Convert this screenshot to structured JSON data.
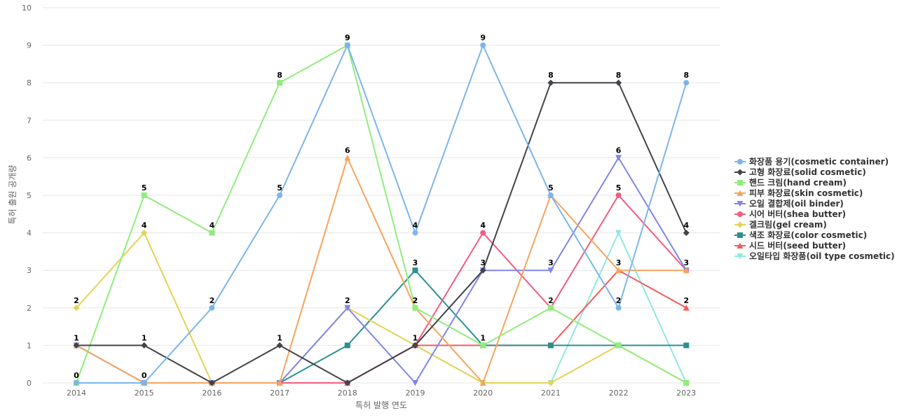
{
  "chart_data": {
    "type": "line",
    "title": "",
    "xlabel": "특허 발행 연도",
    "ylabel": "특허 출원 공개량",
    "ylim": [
      0,
      10
    ],
    "yticks": [
      "0",
      "1",
      "2",
      "3",
      "4",
      "5",
      "6",
      "7",
      "8",
      "9",
      "10"
    ],
    "categories": [
      "2014",
      "2015",
      "2016",
      "2017",
      "2018",
      "2019",
      "2020",
      "2021",
      "2022",
      "2023"
    ],
    "grid": true,
    "legend_position": "right",
    "series": [
      {
        "name": "화장품 용기(cosmetic container)",
        "color": "#7cb5ec",
        "marker": "circle",
        "values": [
          0,
          0,
          2,
          5,
          9,
          4,
          9,
          5,
          2,
          8
        ]
      },
      {
        "name": "고형 화장료(solid cosmetic)",
        "color": "#434348",
        "marker": "diamond",
        "values": [
          1,
          1,
          0,
          1,
          0,
          1,
          3,
          8,
          8,
          4
        ]
      },
      {
        "name": "핸드 크림(hand cream)",
        "color": "#90ed7d",
        "marker": "square",
        "values": [
          0,
          5,
          4,
          8,
          9,
          2,
          1,
          2,
          1,
          0
        ]
      },
      {
        "name": "피부 화장료(skin cosmetic)",
        "color": "#f7a35c",
        "marker": "triangle",
        "values": [
          1,
          0,
          0,
          0,
          6,
          2,
          0,
          5,
          3,
          3
        ]
      },
      {
        "name": "오일 결합제(oil binder)",
        "color": "#8085e9",
        "marker": "triangle-down",
        "values": [
          1,
          0,
          0,
          0,
          2,
          0,
          3,
          3,
          6,
          3
        ]
      },
      {
        "name": "시어 버터(shea butter)",
        "color": "#f15c80",
        "marker": "circle",
        "values": [
          0,
          0,
          0,
          0,
          0,
          1,
          4,
          2,
          5,
          3
        ]
      },
      {
        "name": "겔크림(gel cream)",
        "color": "#e4d354",
        "marker": "diamond",
        "values": [
          2,
          4,
          0,
          0,
          2,
          1,
          0,
          0,
          1,
          0
        ]
      },
      {
        "name": "색조 화장료(color cosmetic)",
        "color": "#2b908f",
        "marker": "square",
        "values": [
          0,
          0,
          0,
          0,
          1,
          3,
          1,
          1,
          1,
          1
        ]
      },
      {
        "name": "시드 버터(seed butter)",
        "color": "#f45b5b",
        "marker": "triangle",
        "values": [
          0,
          0,
          0,
          0,
          0,
          1,
          1,
          1,
          3,
          2
        ]
      },
      {
        "name": "오일타입 화장품(oil type cosmetic)",
        "color": "#91e8e1",
        "marker": "triangle-down",
        "values": [
          0,
          0,
          0,
          0,
          0,
          1,
          0,
          0,
          4,
          0
        ]
      }
    ],
    "data_labels": [
      {
        "series": 0,
        "points": [
          0,
          1,
          2,
          3,
          4,
          5,
          6,
          7,
          8,
          9
        ]
      },
      {
        "series": 1,
        "points": [
          0,
          1,
          3,
          7,
          8,
          9
        ]
      },
      {
        "series": 2,
        "points": [
          1,
          2,
          3,
          4,
          5,
          6,
          7
        ]
      },
      {
        "series": 3,
        "points": [
          4,
          5,
          8
        ]
      },
      {
        "series": 4,
        "points": [
          6,
          7,
          8
        ]
      },
      {
        "series": 5,
        "points": [
          6,
          8,
          9
        ]
      },
      {
        "series": 6,
        "points": [
          0,
          1,
          4,
          5
        ]
      },
      {
        "series": 7,
        "points": [
          5
        ]
      },
      {
        "series": 8,
        "points": [
          9
        ]
      },
      {
        "series": 9,
        "points": []
      }
    ]
  }
}
